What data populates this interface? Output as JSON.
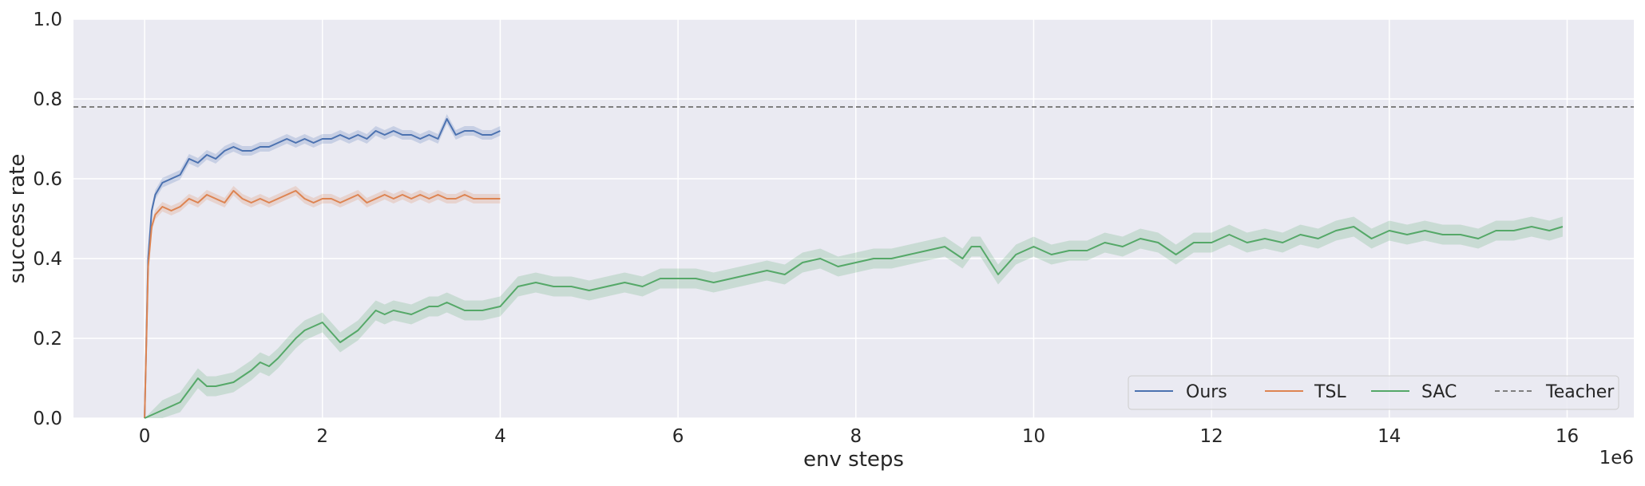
{
  "chart_data": {
    "type": "line",
    "title": "",
    "xlabel": "env steps",
    "ylabel": "success rate",
    "x_offset_label": "1e6",
    "xlim": [
      -0.8,
      16.75
    ],
    "ylim": [
      0.0,
      1.0
    ],
    "x_ticks": [
      0,
      2,
      4,
      6,
      8,
      10,
      12,
      14,
      16
    ],
    "x_tick_labels": [
      "0",
      "2",
      "4",
      "6",
      "8",
      "10",
      "12",
      "14",
      "16"
    ],
    "y_ticks": [
      0.0,
      0.2,
      0.4,
      0.6,
      0.8,
      1.0
    ],
    "y_tick_labels": [
      "0.0",
      "0.2",
      "0.4",
      "0.6",
      "0.8",
      "1.0"
    ],
    "grid": true,
    "legend_position": "bottom-right",
    "legend": [
      "Ours",
      "TSL",
      "SAC",
      "Teacher"
    ],
    "colors": {
      "background": "#eaeaf2",
      "grid": "#ffffff",
      "Ours": "#4c72b0",
      "TSL": "#dd8452",
      "SAC": "#55a868",
      "Teacher": "#7f7f7f"
    },
    "series": [
      {
        "name": "Ours",
        "color": "#4c72b0",
        "x": [
          0,
          0.04,
          0.08,
          0.12,
          0.2,
          0.3,
          0.4,
          0.5,
          0.6,
          0.7,
          0.8,
          0.9,
          1.0,
          1.1,
          1.2,
          1.3,
          1.4,
          1.5,
          1.6,
          1.7,
          1.8,
          1.9,
          2.0,
          2.1,
          2.2,
          2.3,
          2.4,
          2.5,
          2.6,
          2.7,
          2.8,
          2.9,
          3.0,
          3.1,
          3.2,
          3.3,
          3.4,
          3.5,
          3.6,
          3.7,
          3.8,
          3.9,
          4.0
        ],
        "y": [
          0.0,
          0.4,
          0.52,
          0.56,
          0.59,
          0.6,
          0.61,
          0.65,
          0.64,
          0.66,
          0.65,
          0.67,
          0.68,
          0.67,
          0.67,
          0.68,
          0.68,
          0.69,
          0.7,
          0.69,
          0.7,
          0.69,
          0.7,
          0.7,
          0.71,
          0.7,
          0.71,
          0.7,
          0.72,
          0.71,
          0.72,
          0.71,
          0.71,
          0.7,
          0.71,
          0.7,
          0.75,
          0.71,
          0.72,
          0.72,
          0.71,
          0.71,
          0.72
        ],
        "ci_halfwidth": 0.012
      },
      {
        "name": "TSL",
        "color": "#dd8452",
        "x": [
          0,
          0.04,
          0.08,
          0.12,
          0.2,
          0.3,
          0.4,
          0.5,
          0.6,
          0.7,
          0.8,
          0.9,
          1.0,
          1.1,
          1.2,
          1.3,
          1.4,
          1.5,
          1.6,
          1.7,
          1.8,
          1.9,
          2.0,
          2.1,
          2.2,
          2.3,
          2.4,
          2.5,
          2.6,
          2.7,
          2.8,
          2.9,
          3.0,
          3.1,
          3.2,
          3.3,
          3.4,
          3.5,
          3.6,
          3.7,
          3.8,
          3.9,
          4.0
        ],
        "y": [
          0.0,
          0.38,
          0.48,
          0.51,
          0.53,
          0.52,
          0.53,
          0.55,
          0.54,
          0.56,
          0.55,
          0.54,
          0.57,
          0.55,
          0.54,
          0.55,
          0.54,
          0.55,
          0.56,
          0.57,
          0.55,
          0.54,
          0.55,
          0.55,
          0.54,
          0.55,
          0.56,
          0.54,
          0.55,
          0.56,
          0.55,
          0.56,
          0.55,
          0.56,
          0.55,
          0.56,
          0.55,
          0.55,
          0.56,
          0.55,
          0.55,
          0.55,
          0.55
        ],
        "ci_halfwidth": 0.012
      },
      {
        "name": "SAC",
        "color": "#55a868",
        "x": [
          0,
          0.2,
          0.4,
          0.6,
          0.7,
          0.8,
          1.0,
          1.2,
          1.3,
          1.4,
          1.5,
          1.7,
          1.8,
          2.0,
          2.2,
          2.4,
          2.6,
          2.7,
          2.8,
          3.0,
          3.2,
          3.3,
          3.4,
          3.6,
          3.8,
          4.0,
          4.2,
          4.4,
          4.6,
          4.8,
          5.0,
          5.2,
          5.4,
          5.6,
          5.8,
          6.0,
          6.2,
          6.4,
          6.6,
          6.8,
          7.0,
          7.2,
          7.4,
          7.6,
          7.8,
          8.0,
          8.2,
          8.4,
          8.6,
          8.8,
          9.0,
          9.2,
          9.3,
          9.4,
          9.6,
          9.8,
          10.0,
          10.2,
          10.4,
          10.6,
          10.8,
          11.0,
          11.2,
          11.4,
          11.6,
          11.8,
          12.0,
          12.2,
          12.4,
          12.6,
          12.8,
          13.0,
          13.2,
          13.4,
          13.6,
          13.8,
          14.0,
          14.2,
          14.4,
          14.6,
          14.8,
          15.0,
          15.2,
          15.4,
          15.6,
          15.8,
          15.95
        ],
        "y": [
          0.0,
          0.02,
          0.04,
          0.1,
          0.08,
          0.08,
          0.09,
          0.12,
          0.14,
          0.13,
          0.15,
          0.2,
          0.22,
          0.24,
          0.19,
          0.22,
          0.27,
          0.26,
          0.27,
          0.26,
          0.28,
          0.28,
          0.29,
          0.27,
          0.27,
          0.28,
          0.33,
          0.34,
          0.33,
          0.33,
          0.32,
          0.33,
          0.34,
          0.33,
          0.35,
          0.35,
          0.35,
          0.34,
          0.35,
          0.36,
          0.37,
          0.36,
          0.39,
          0.4,
          0.38,
          0.39,
          0.4,
          0.4,
          0.41,
          0.42,
          0.43,
          0.4,
          0.43,
          0.43,
          0.36,
          0.41,
          0.43,
          0.41,
          0.42,
          0.42,
          0.44,
          0.43,
          0.45,
          0.44,
          0.41,
          0.44,
          0.44,
          0.46,
          0.44,
          0.45,
          0.44,
          0.46,
          0.45,
          0.47,
          0.48,
          0.45,
          0.47,
          0.46,
          0.47,
          0.46,
          0.46,
          0.45,
          0.47,
          0.47,
          0.48,
          0.47,
          0.48
        ],
        "ci_halfwidth": 0.025
      },
      {
        "name": "Teacher",
        "color": "#7f7f7f",
        "style": "dashed",
        "y": 0.78
      }
    ]
  }
}
